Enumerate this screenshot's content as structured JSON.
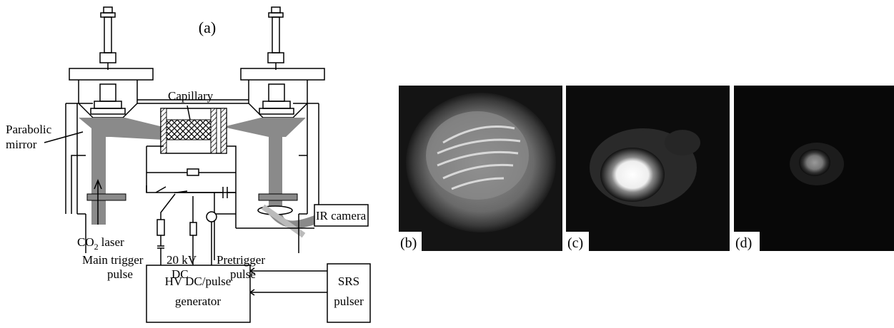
{
  "figure": {
    "panel_a": {
      "label": "(a)",
      "capillary": "Capillary",
      "parabolic_mirror": [
        "Parabolic",
        "mirror"
      ],
      "co2_laser": {
        "main": "CO",
        "subscript": "2",
        "tail": "laser"
      },
      "ir_camera": "IR camera",
      "main_trigger_pulse": [
        "Main trigger",
        "pulse"
      ],
      "dc": [
        "20 kV",
        "DC"
      ],
      "pretrigger_pulse": [
        "Pretrigger",
        "pulse"
      ],
      "generator": [
        "HV DC/pulse",
        "generator"
      ],
      "srs_pulser": [
        "SRS",
        "pulser"
      ]
    },
    "panels": [
      "(b)",
      "(c)",
      "(d)"
    ]
  }
}
